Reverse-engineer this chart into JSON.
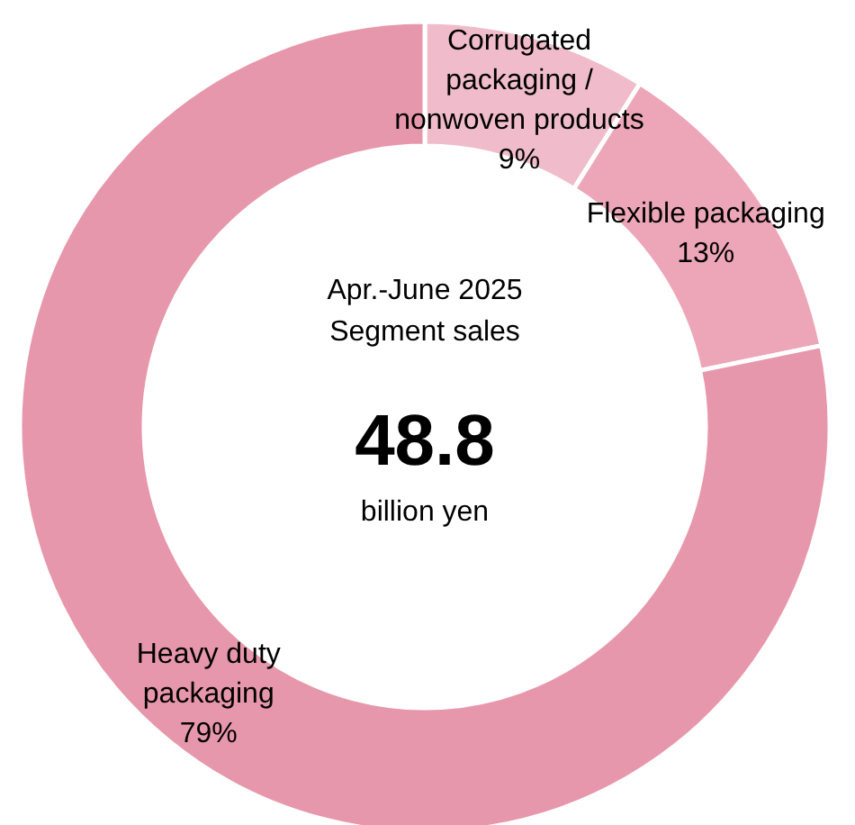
{
  "chart_data": {
    "type": "donut",
    "categories": [
      "Corrugated\npackaging /\nnonwoven products",
      "Flexible packaging",
      "Heavy duty\npackaging"
    ],
    "values": [
      9,
      13,
      79
    ],
    "colors": [
      "#f0bccb",
      "#eca6b8",
      "#e797ab"
    ],
    "value_labels": [
      "9%",
      "13%",
      "79%"
    ],
    "annotations": [
      "Apr.-June 2025",
      "Segment sales",
      "48.8",
      "billion yen"
    ]
  }
}
